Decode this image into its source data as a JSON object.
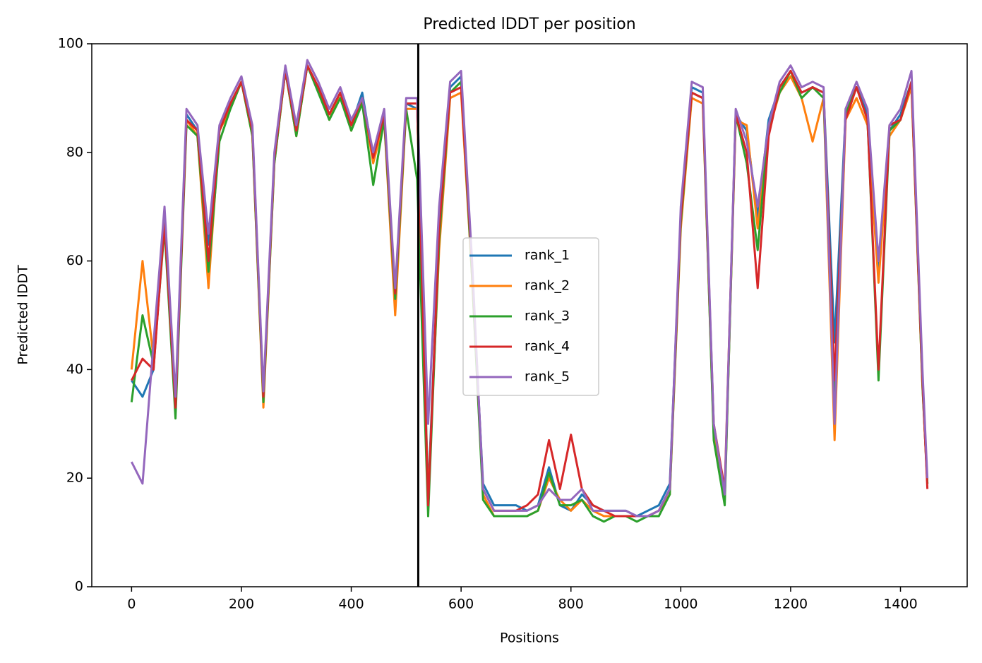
{
  "chart_data": {
    "type": "line",
    "title": "Predicted lDDT per position",
    "xlabel": "Positions",
    "ylabel": "Predicted lDDT",
    "x": [
      0,
      20,
      40,
      60,
      80,
      100,
      120,
      140,
      160,
      180,
      200,
      220,
      240,
      260,
      280,
      300,
      320,
      340,
      360,
      380,
      400,
      420,
      440,
      460,
      480,
      500,
      520,
      540,
      560,
      580,
      600,
      620,
      640,
      660,
      680,
      700,
      720,
      740,
      760,
      780,
      800,
      820,
      840,
      860,
      880,
      900,
      920,
      940,
      960,
      980,
      1000,
      1020,
      1040,
      1060,
      1080,
      1100,
      1120,
      1140,
      1160,
      1180,
      1200,
      1220,
      1240,
      1260,
      1280,
      1300,
      1320,
      1340,
      1360,
      1380,
      1400,
      1420,
      1440,
      1449
    ],
    "series": [
      {
        "name": "rank_1",
        "color": "#1f77b4",
        "values": [
          38,
          35,
          40,
          68,
          34,
          87,
          84,
          63,
          84,
          89,
          93,
          84,
          35,
          79,
          95,
          84,
          96,
          92,
          87,
          91,
          85,
          91,
          79,
          87,
          52,
          89,
          88,
          17,
          65,
          92,
          94,
          58,
          19,
          15,
          15,
          15,
          14,
          15,
          22,
          15,
          14,
          17,
          15,
          14,
          14,
          14,
          13,
          14,
          15,
          19,
          68,
          92,
          91,
          28,
          16,
          87,
          84,
          68,
          86,
          92,
          95,
          91,
          92,
          91,
          45,
          87,
          92,
          87,
          58,
          84,
          87,
          93,
          38,
          19
        ]
      },
      {
        "name": "rank_2",
        "color": "#ff7f0e",
        "values": [
          40,
          60,
          42,
          67,
          33,
          86,
          83,
          55,
          84,
          88,
          93,
          83,
          33,
          78,
          95,
          83,
          96,
          92,
          86,
          91,
          84,
          90,
          78,
          86,
          50,
          88,
          88,
          16,
          62,
          90,
          91,
          57,
          17,
          13,
          13,
          13,
          13,
          14,
          20,
          16,
          14,
          16,
          14,
          13,
          13,
          13,
          13,
          13,
          14,
          17,
          66,
          90,
          89,
          28,
          16,
          86,
          85,
          66,
          84,
          91,
          94,
          90,
          82,
          90,
          27,
          86,
          90,
          85,
          56,
          83,
          86,
          92,
          37,
          19
        ]
      },
      {
        "name": "rank_3",
        "color": "#2ca02c",
        "values": [
          34,
          50,
          41,
          66,
          31,
          85,
          83,
          58,
          82,
          88,
          93,
          83,
          34,
          78,
          95,
          83,
          96,
          91,
          86,
          90,
          84,
          89,
          74,
          86,
          53,
          88,
          75,
          13,
          64,
          91,
          93,
          57,
          16,
          13,
          13,
          13,
          13,
          14,
          21,
          15,
          15,
          16,
          13,
          12,
          13,
          13,
          12,
          13,
          13,
          17,
          67,
          91,
          90,
          27,
          15,
          87,
          78,
          62,
          85,
          91,
          95,
          90,
          92,
          90,
          35,
          87,
          92,
          86,
          38,
          84,
          86,
          93,
          37,
          19
        ]
      },
      {
        "name": "rank_4",
        "color": "#d62728",
        "values": [
          38,
          42,
          40,
          67,
          33,
          86,
          84,
          60,
          84,
          89,
          93,
          84,
          35,
          79,
          95,
          84,
          96,
          92,
          87,
          91,
          85,
          90,
          79,
          87,
          54,
          89,
          89,
          15,
          66,
          91,
          92,
          59,
          18,
          14,
          14,
          14,
          15,
          17,
          27,
          18,
          28,
          18,
          15,
          14,
          13,
          13,
          13,
          13,
          14,
          18,
          68,
          91,
          90,
          30,
          18,
          87,
          80,
          55,
          83,
          92,
          95,
          91,
          92,
          91,
          38,
          86,
          92,
          86,
          40,
          85,
          86,
          93,
          38,
          18
        ]
      },
      {
        "name": "rank_5",
        "color": "#9467bd",
        "values": [
          23,
          19,
          45,
          70,
          35,
          88,
          85,
          65,
          85,
          90,
          94,
          85,
          36,
          80,
          96,
          85,
          97,
          93,
          88,
          92,
          86,
          90,
          80,
          88,
          55,
          90,
          90,
          30,
          70,
          93,
          95,
          60,
          18,
          14,
          14,
          14,
          14,
          15,
          18,
          16,
          16,
          18,
          14,
          14,
          14,
          14,
          13,
          13,
          14,
          18,
          70,
          93,
          92,
          30,
          17,
          88,
          82,
          70,
          85,
          93,
          96,
          92,
          93,
          92,
          30,
          88,
          93,
          88,
          60,
          85,
          88,
          95,
          40,
          20
        ]
      }
    ],
    "vlines": [
      522
    ],
    "vline_color": "#000000",
    "xlim": [
      -72.45,
      1521.45
    ],
    "xticks": [
      0,
      200,
      400,
      600,
      800,
      1000,
      1200,
      1400
    ],
    "ylim": [
      0,
      100
    ],
    "yticks": [
      0,
      20,
      40,
      60,
      80,
      100
    ],
    "legend": "center"
  }
}
